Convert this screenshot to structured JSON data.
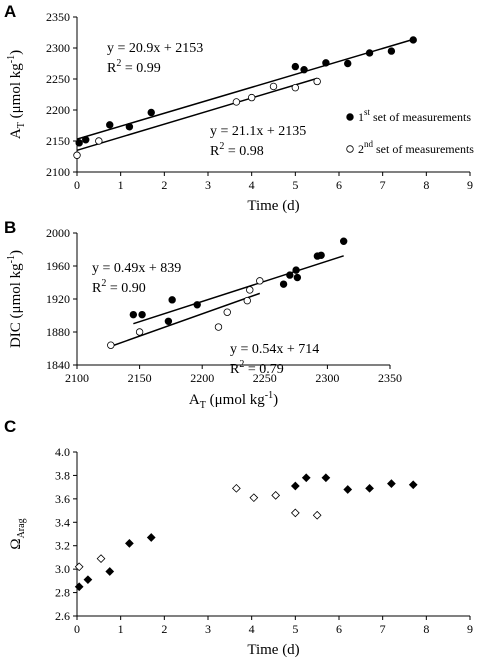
{
  "chart_data": [
    {
      "panel": "A",
      "type": "scatter",
      "ylabel": "A",
      "ylabel_sub": "T",
      "ylabel_rest": " (μmol kg",
      "ylabel_sup": "-1",
      "ylabel_end": ")",
      "xlabel": "Time (d)",
      "xlim": [
        0,
        9
      ],
      "ylim": [
        2100,
        2350
      ],
      "xticks": [
        "0",
        "1",
        "2",
        "3",
        "4",
        "5",
        "6",
        "7",
        "8",
        "9"
      ],
      "yticks": [
        "2100",
        "2150",
        "2200",
        "2250",
        "2300",
        "2350"
      ],
      "series": [
        {
          "marker": "circle-filled",
          "x": [
            0.05,
            0.2,
            0.75,
            1.2,
            1.7,
            5.0,
            5.2,
            5.7,
            6.2,
            6.7,
            7.2,
            7.7
          ],
          "y": [
            2147,
            2152,
            2176,
            2173,
            2196,
            2270,
            2265,
            2276,
            2275,
            2292,
            2295,
            2313
          ]
        },
        {
          "marker": "circle-open",
          "x": [
            0.0,
            0.5,
            3.65,
            4.0,
            4.5,
            5.0,
            5.5
          ],
          "y": [
            2127,
            2150,
            2213,
            2220,
            2238,
            2236,
            2246
          ]
        }
      ],
      "trendlines": [
        {
          "slope": 20.9,
          "intercept": 2153,
          "x": [
            0,
            7.7
          ]
        },
        {
          "slope": 21.1,
          "intercept": 2135,
          "x": [
            0,
            5.5
          ]
        }
      ],
      "annotations": {
        "eq1": "y = 20.9x + 2153",
        "r1": "0.99",
        "eq2": "y = 21.1x + 2135",
        "r2": "0.98",
        "r_prefix": "R",
        "r_sup": "2",
        "r_eq": " = "
      },
      "legend": [
        {
          "prefix": "1",
          "sup": "st",
          "rest": " set of measurements"
        },
        {
          "prefix": "2",
          "sup": "nd",
          "rest": " set of measurements"
        }
      ]
    },
    {
      "panel": "B",
      "type": "scatter",
      "ylabel": "DIC (μmol kg",
      "ylabel_sup": "-1",
      "ylabel_end": ")",
      "xlabel": "A",
      "xlabel_sub": "T",
      "xlabel_rest": " (μmol kg",
      "xlabel_sup": "-1",
      "xlabel_end": ")",
      "xlim": [
        2100,
        2350
      ],
      "ylim": [
        1840,
        2000
      ],
      "xticks": [
        "2100",
        "2150",
        "2200",
        "2250",
        "2300",
        "2350"
      ],
      "yticks": [
        "1840",
        "1880",
        "1920",
        "1960",
        "2000"
      ],
      "series": [
        {
          "marker": "circle-filled",
          "x": [
            2145,
            2152,
            2173,
            2176,
            2196,
            2265,
            2270,
            2275,
            2276,
            2292,
            2295,
            2313
          ],
          "y": [
            1901,
            1901,
            1893,
            1919,
            1913,
            1938,
            1949,
            1955,
            1946,
            1972,
            1973,
            1990
          ]
        },
        {
          "marker": "circle-open",
          "x": [
            2127,
            2150,
            2213,
            2220,
            2236,
            2238,
            2246
          ],
          "y": [
            1864,
            1880,
            1886,
            1904,
            1918,
            1931,
            1942
          ]
        }
      ],
      "trendlines": [
        {
          "slope": 0.49,
          "intercept": 839,
          "x": [
            2145,
            2313
          ]
        },
        {
          "slope": 0.54,
          "intercept": 714,
          "x": [
            2127,
            2246
          ]
        }
      ],
      "annotations": {
        "eq1": "y = 0.49x + 839",
        "r1": "0.90",
        "eq2": "y = 0.54x + 714",
        "r2": "0.79",
        "r_prefix": "R",
        "r_sup": "2",
        "r_eq": " = "
      }
    },
    {
      "panel": "C",
      "type": "scatter",
      "ylabel": "Ω",
      "ylabel_sub": "Arag",
      "xlabel": "Time (d)",
      "xlim": [
        0,
        9
      ],
      "ylim": [
        2.6,
        4.0
      ],
      "xticks": [
        "0",
        "1",
        "2",
        "3",
        "4",
        "5",
        "6",
        "7",
        "8",
        "9"
      ],
      "yticks": [
        "2.6",
        "2.8",
        "3.0",
        "3.2",
        "3.4",
        "3.6",
        "3.8",
        "4.0"
      ],
      "series": [
        {
          "marker": "diamond-filled",
          "x": [
            0.05,
            0.25,
            0.75,
            1.2,
            1.7,
            5.0,
            5.25,
            5.7,
            6.2,
            6.7,
            7.2,
            7.7
          ],
          "y": [
            2.85,
            2.91,
            2.98,
            3.22,
            3.27,
            3.71,
            3.78,
            3.78,
            3.68,
            3.69,
            3.73,
            3.72
          ]
        },
        {
          "marker": "diamond-open",
          "x": [
            0.05,
            0.55,
            3.65,
            4.05,
            4.55,
            5.0,
            5.5
          ],
          "y": [
            3.02,
            3.09,
            3.69,
            3.61,
            3.63,
            3.48,
            3.46
          ]
        }
      ]
    }
  ]
}
